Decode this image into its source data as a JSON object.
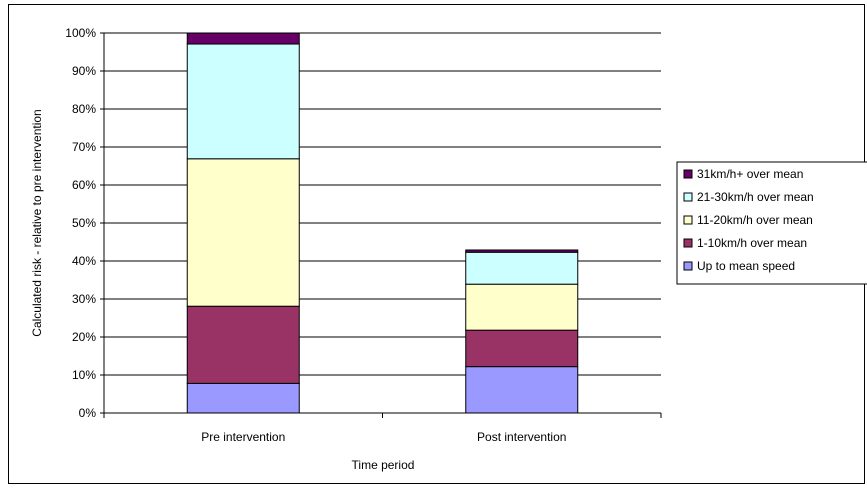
{
  "chart_data": {
    "type": "bar",
    "stacked": true,
    "categories": [
      "Pre intervention",
      "Post intervention"
    ],
    "series": [
      {
        "name": "Up to mean speed",
        "values": [
          7.8,
          12.2
        ],
        "color": "#9999ff"
      },
      {
        "name": "1-10km/h over mean",
        "values": [
          20.3,
          9.6
        ],
        "color": "#993366"
      },
      {
        "name": "11-20km/h over mean",
        "values": [
          38.8,
          12.1
        ],
        "color": "#ffffcc"
      },
      {
        "name": "21-30km/h over mean",
        "values": [
          30.2,
          8.4
        ],
        "color": "#ccffff"
      },
      {
        "name": "31km/h+ over mean",
        "values": [
          2.9,
          0.6
        ],
        "color": "#660066"
      }
    ],
    "xlabel": "Time period",
    "ylabel": "Calculated risk - relative to pre intervention",
    "ylim": [
      0,
      100
    ],
    "yticks": [
      "0%",
      "10%",
      "20%",
      "30%",
      "40%",
      "50%",
      "60%",
      "70%",
      "80%",
      "90%",
      "100%"
    ],
    "grid": true,
    "legend_position": "right"
  }
}
